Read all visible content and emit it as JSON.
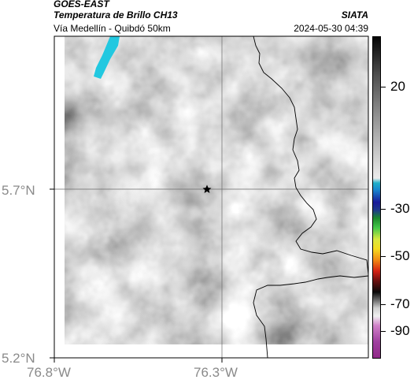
{
  "header": {
    "satellite": "GOES-EAST",
    "product": "Temperatura de Brillo CH13",
    "organization": "SIATA",
    "route": "Vía Medellín - Quibdó 50km",
    "timestamp": "2024-05-30 04:39"
  },
  "map": {
    "lat_ticks": [
      "5.7°N",
      "5.2°N"
    ],
    "lon_ticks": [
      "76.8°W",
      "76.3°W"
    ],
    "center_marker": "star-icon",
    "grid": true
  },
  "colorbar": {
    "labels": [
      "20",
      "-30",
      "-50",
      "-70",
      "-90"
    ]
  },
  "colors": {
    "cloud_high_cyan": "#22c8e0",
    "border_line": "#000000",
    "tick_text": "#8a8a8a"
  }
}
